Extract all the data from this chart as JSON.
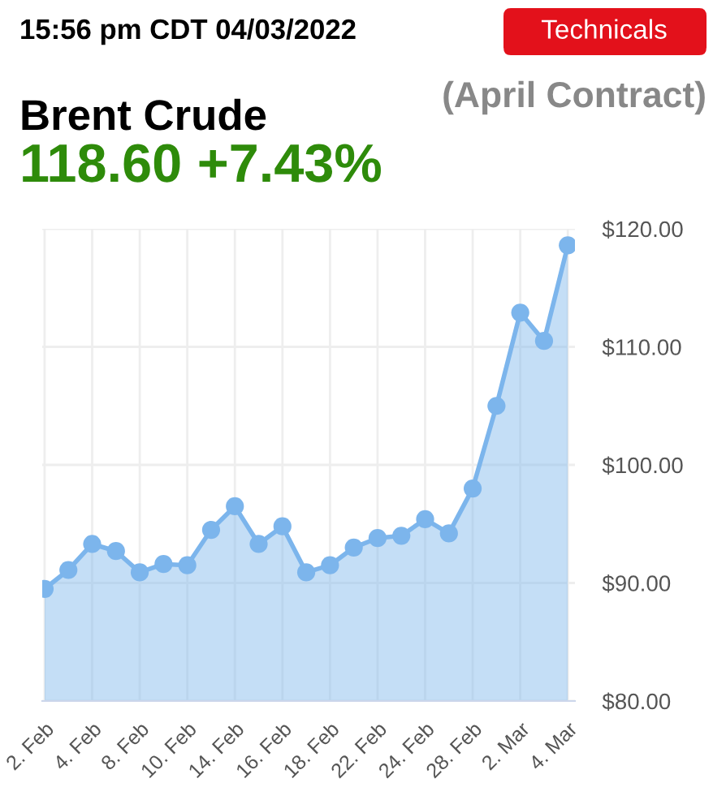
{
  "chart_data": {
    "type": "area",
    "title": "Brent Crude",
    "subtitle": "(April Contract)",
    "annotations": [
      "15:56 pm CDT 04/03/2022",
      "Technicals",
      "118.60 +7.43%"
    ],
    "categories": [
      "2. Feb",
      null,
      "4. Feb",
      null,
      "8. Feb",
      null,
      "10. Feb",
      null,
      "14. Feb",
      null,
      "16. Feb",
      null,
      "18. Feb",
      null,
      "22. Feb",
      null,
      "24. Feb",
      null,
      "28. Feb",
      null,
      "2. Mar",
      null,
      "4. Mar"
    ],
    "series": [
      {
        "color": "#7cb5ec",
        "values": [
          89.5,
          91.1,
          93.3,
          92.7,
          90.9,
          91.6,
          91.5,
          94.5,
          96.5,
          93.3,
          94.8,
          90.9,
          91.5,
          93.0,
          93.8,
          94.0,
          95.4,
          94.2,
          98.0,
          105.0,
          112.9,
          110.5,
          118.6
        ]
      }
    ],
    "ylim": [
      80,
      120
    ],
    "yticks": [
      {
        "value": 80,
        "label": "$80.00"
      },
      {
        "value": 90,
        "label": "$90.00"
      },
      {
        "value": 100,
        "label": "$100.00"
      },
      {
        "value": 110,
        "label": "$110.00"
      },
      {
        "value": 120,
        "label": "$120.00"
      }
    ],
    "grid": true,
    "marker": "circle",
    "line_style": "solid"
  }
}
